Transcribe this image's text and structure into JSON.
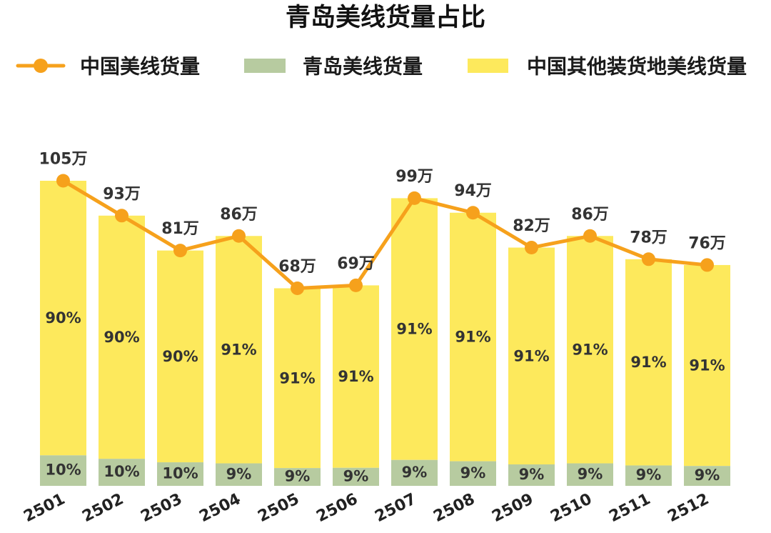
{
  "chart_data": {
    "type": "bar",
    "stacked": true,
    "title": "青岛美线货量占比",
    "categories": [
      "2501",
      "2502",
      "2503",
      "2504",
      "2505",
      "2506",
      "2507",
      "2508",
      "2509",
      "2510",
      "2511",
      "2512"
    ],
    "series": [
      {
        "name": "中国美线货量",
        "type": "line",
        "color": "#F6A11C",
        "values": [
          105,
          93,
          81,
          86,
          68,
          69,
          99,
          94,
          82,
          86,
          78,
          76
        ],
        "labels": [
          "105万",
          "93万",
          "81万",
          "86万",
          "68万",
          "69万",
          "99万",
          "94万",
          "82万",
          "86万",
          "78万",
          "76万"
        ]
      },
      {
        "name": "青岛美线货量",
        "type": "bar",
        "color": "#B7CBA0",
        "values": [
          10,
          10,
          10,
          9,
          9,
          9,
          9,
          9,
          9,
          9,
          9,
          9
        ],
        "labels": [
          "10%",
          "10%",
          "10%",
          "9%",
          "9%",
          "9%",
          "9%",
          "9%",
          "9%",
          "9%",
          "9%",
          "9%"
        ]
      },
      {
        "name": "中国其他装货地美线货量",
        "type": "bar",
        "color": "#FDE95C",
        "values": [
          90,
          90,
          90,
          91,
          91,
          91,
          91,
          91,
          91,
          91,
          91,
          91
        ],
        "labels": [
          "90%",
          "90%",
          "90%",
          "91%",
          "91%",
          "91%",
          "91%",
          "91%",
          "91%",
          "91%",
          "91%",
          "91%"
        ]
      }
    ],
    "legend_position": "top",
    "y_axis_visible": false,
    "grid": false
  }
}
